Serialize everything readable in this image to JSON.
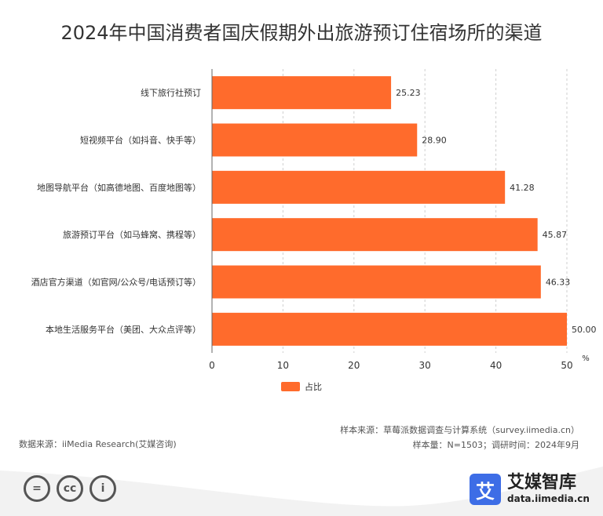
{
  "title": "2024年中国消费者国庆假期外出旅游预订住宿场所的渠道",
  "chart_data": {
    "type": "bar",
    "orientation": "horizontal",
    "categories": [
      "线下旅行社预订",
      "短视频平台（如抖音、快手等）",
      "地图导航平台（如高德地图、百度地图等）",
      "旅游预订平台（如马蜂窝、携程等）",
      "酒店官方渠道（如官网/公众号/电话预订等）",
      "本地生活服务平台（美团、大众点评等）"
    ],
    "series": [
      {
        "name": "占比",
        "values": [
          25.23,
          28.9,
          41.28,
          45.87,
          46.33,
          50.0
        ]
      }
    ],
    "value_labels": [
      "25.23",
      "28.90",
      "41.28",
      "45.87",
      "46.33",
      "50.00"
    ],
    "xlim": [
      0,
      50
    ],
    "xticks": [
      0,
      10,
      20,
      30,
      40,
      50
    ],
    "xtick_labels": [
      "0",
      "10",
      "20",
      "30",
      "40",
      "50"
    ],
    "unit": "%",
    "grid": true,
    "legend_position": "bottom",
    "bar_color": "#ff6b2c"
  },
  "footer": {
    "source": "数据来源：iiMedia Research(艾媒咨询)",
    "sample_source": "样本来源：草莓派数据调查与计算系统（survey.iimedia.cn）",
    "sample_size": "样本量：N=1503；调研时间：2024年9月"
  },
  "brand": {
    "logo_char": "艾",
    "name": "艾媒智库",
    "url": "data.iimedia.cn"
  },
  "license_icons": [
    "equals-icon",
    "cc-icon",
    "person-icon"
  ],
  "license_glyphs": [
    "=",
    "cc",
    "i"
  ]
}
